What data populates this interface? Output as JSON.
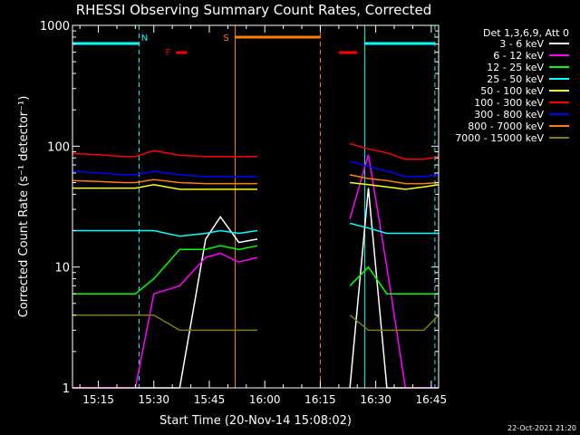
{
  "chart_data": {
    "type": "line",
    "title": "RHESSI Observing Summary Count Rates, Corrected",
    "xlabel": "Start Time (20-Nov-14 15:08:02)",
    "ylabel": "Corrected Count Rate (s⁻¹ detector⁻¹)",
    "y_scale": "log",
    "ylim": [
      1,
      1000
    ],
    "xlim": [
      "15:08",
      "16:47"
    ],
    "x_ticks": [
      "15:15",
      "15:30",
      "15:45",
      "16:00",
      "16:15",
      "16:30",
      "16:45"
    ],
    "y_ticks": [
      "1",
      "10",
      "100",
      "1000"
    ],
    "legend_title": "Det 1,3,6,9, Att 0",
    "legend_position": "right",
    "timestamp": "22-Oct-2021 21:20",
    "colors": {
      "axes": "#ffffff",
      "background": "#000000",
      "night": "#00ffff",
      "saa": "#ff8000",
      "flare": "#ff0000"
    },
    "annotations": [
      {
        "label": "N",
        "type": "night",
        "x_start": "15:08",
        "x_end": "15:26",
        "color": "#00ffff"
      },
      {
        "label": "",
        "type": "night",
        "x_start": "16:27",
        "x_end": "16:46",
        "color": "#00ffff"
      },
      {
        "label": "S",
        "type": "saa",
        "x_start": "15:52",
        "x_end": "16:15",
        "color": "#ff8000"
      },
      {
        "label": "F",
        "type": "flare",
        "x_start": "15:36",
        "x_end": "15:39",
        "color": "#ff0000"
      },
      {
        "label": "",
        "type": "flare",
        "x_start": "16:20",
        "x_end": "16:25",
        "color": "#ff0000"
      }
    ],
    "segments": [
      {
        "x_start": "15:08",
        "x_end": "15:52"
      },
      {
        "x_start": "16:17",
        "x_end": "16:46"
      }
    ],
    "x_minutes": [
      0,
      7,
      14,
      17,
      22,
      29,
      36,
      40,
      45,
      50,
      55,
      60,
      65,
      70,
      75,
      80,
      85,
      90,
      95,
      99
    ],
    "series": [
      {
        "name": "3 - 6 keV",
        "color": "#ffffff",
        "values": [
          1,
          1,
          1,
          1,
          1,
          1,
          17,
          26,
          16,
          17,
          null,
          null,
          null,
          null,
          1,
          45,
          1,
          1,
          1,
          1
        ]
      },
      {
        "name": "6 - 12 keV",
        "color": "#ff00ff",
        "values": [
          1,
          1,
          1,
          1,
          6,
          7,
          12,
          13,
          11,
          12,
          null,
          null,
          null,
          null,
          25,
          85,
          10,
          1,
          1,
          1
        ]
      },
      {
        "name": "12 - 25 keV",
        "color": "#00ff00",
        "values": [
          6,
          6,
          6,
          6,
          8,
          14,
          14,
          15,
          14,
          15,
          null,
          null,
          null,
          null,
          7,
          10,
          6,
          6,
          6,
          6
        ]
      },
      {
        "name": "25 - 50 keV",
        "color": "#00ffff",
        "values": [
          20,
          20,
          20,
          20,
          20,
          18,
          19,
          20,
          19,
          20,
          null,
          null,
          null,
          null,
          23,
          21,
          19,
          19,
          19,
          19
        ]
      },
      {
        "name": "50 - 100 keV",
        "color": "#ffff00",
        "values": [
          45,
          45,
          45,
          45,
          48,
          44,
          44,
          44,
          44,
          44,
          null,
          null,
          null,
          null,
          50,
          48,
          46,
          44,
          46,
          48
        ]
      },
      {
        "name": "100 - 300 keV",
        "color": "#ff0000",
        "values": [
          87,
          85,
          82,
          82,
          92,
          84,
          82,
          82,
          82,
          82,
          null,
          null,
          null,
          null,
          105,
          95,
          88,
          78,
          78,
          82
        ]
      },
      {
        "name": "300 - 800 keV",
        "color": "#0000ff",
        "values": [
          62,
          60,
          58,
          58,
          62,
          58,
          56,
          56,
          56,
          56,
          null,
          null,
          null,
          null,
          75,
          68,
          62,
          56,
          56,
          58
        ]
      },
      {
        "name": "800 - 7000 keV",
        "color": "#ff8000",
        "values": [
          52,
          51,
          50,
          50,
          53,
          50,
          49,
          49,
          49,
          49,
          null,
          null,
          null,
          null,
          58,
          54,
          52,
          49,
          49,
          50
        ]
      },
      {
        "name": "7000 - 15000 keV",
        "color": "#808000",
        "values": [
          4,
          4,
          4,
          4,
          4,
          3,
          3,
          3,
          3,
          3,
          null,
          null,
          null,
          null,
          4,
          3,
          3,
          3,
          3,
          4
        ]
      }
    ]
  }
}
